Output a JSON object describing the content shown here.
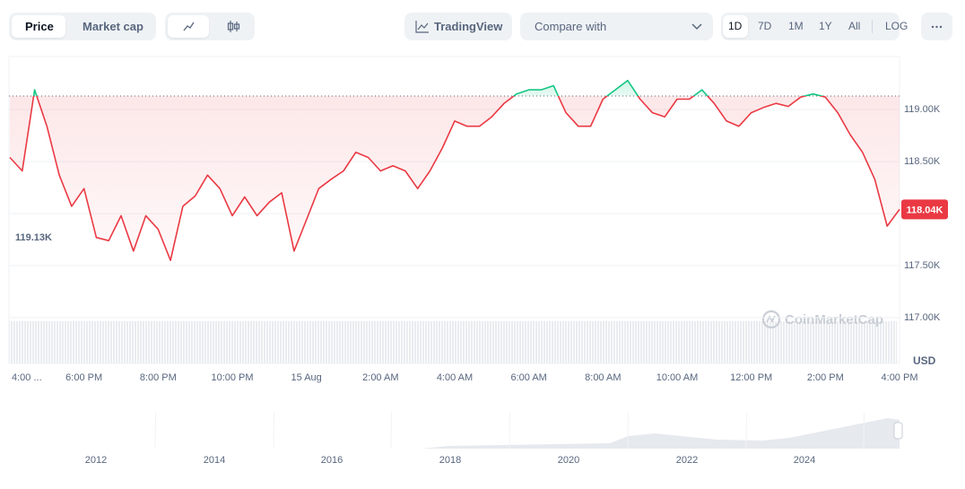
{
  "toolbar": {
    "tabs": [
      "Price",
      "Market cap"
    ],
    "trading_view": "TradingView",
    "compare": "Compare with",
    "ranges": [
      "1D",
      "7D",
      "1M",
      "1Y",
      "All"
    ],
    "log": "LOG"
  },
  "chart_data": {
    "type": "line",
    "categories": [
      "4:00 ...",
      null,
      null,
      null,
      null,
      null,
      "6:00 PM",
      null,
      null,
      null,
      null,
      null,
      "8:00 PM",
      null,
      null,
      null,
      null,
      null,
      "10:00 PM",
      null,
      null,
      null,
      null,
      null,
      "15 Aug",
      null,
      null,
      null,
      null,
      null,
      "2:00 AM",
      null,
      null,
      null,
      null,
      null,
      "4:00 AM",
      null,
      null,
      null,
      null,
      null,
      "6:00 AM",
      null,
      null,
      null,
      null,
      null,
      "8:00 AM",
      null,
      null,
      null,
      null,
      null,
      "10:00 AM",
      null,
      null,
      null,
      null,
      null,
      "12:00 PM",
      null,
      null,
      null,
      null,
      null,
      "2:00 PM",
      null,
      null,
      null,
      null,
      null,
      "4:00 PM"
    ],
    "values": [
      118540,
      118410,
      119190,
      118840,
      118370,
      118070,
      118240,
      117770,
      117740,
      117980,
      117640,
      117980,
      117850,
      117550,
      118070,
      118170,
      118370,
      118240,
      117980,
      118160,
      117980,
      118110,
      118200,
      117640,
      117940,
      118240,
      118330,
      118410,
      118590,
      118540,
      118410,
      118460,
      118410,
      118240,
      118410,
      118630,
      118890,
      118840,
      118840,
      118930,
      119060,
      119150,
      119190,
      119190,
      119230,
      118970,
      118840,
      118840,
      119100,
      119190,
      119280,
      119100,
      118970,
      118930,
      119100,
      119100,
      119190,
      119060,
      118890,
      118840,
      118970,
      119020,
      119060,
      119030,
      119120,
      119150,
      119120,
      118970,
      118760,
      118590,
      118330,
      117880,
      118040
    ],
    "color_above": "#16c784",
    "color_below": "#ea3943",
    "ylim": [
      117000,
      119510
    ],
    "yticks": [
      {
        "value": 117000,
        "label": "117.00K"
      },
      {
        "value": 117500,
        "label": "117.50K"
      },
      {
        "value": 118000,
        "label": "118.00K"
      },
      {
        "value": 118500,
        "label": "118.50K"
      },
      {
        "value": 119000,
        "label": "119.00K"
      }
    ],
    "grid": true,
    "baseline": {
      "value": 119130,
      "label": "119.13K"
    },
    "last_price": {
      "value": 118040,
      "label": "118.04K"
    },
    "currency": "USD",
    "watermark": "CoinMarketCap"
  },
  "navigator": {
    "years": [
      "2012",
      "2014",
      "2016",
      "2018",
      "2020",
      "2022",
      "2024"
    ]
  }
}
